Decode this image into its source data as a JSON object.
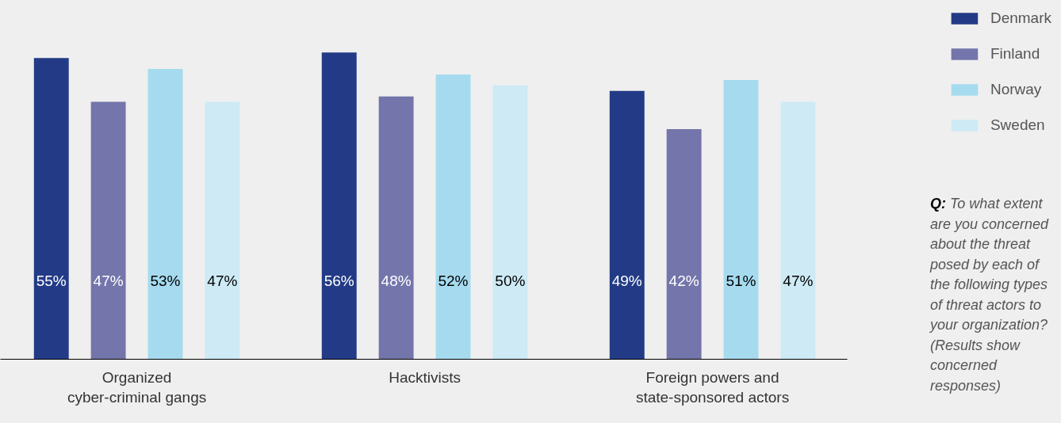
{
  "chart_data": {
    "type": "bar",
    "categories": [
      "Organized cyber-criminal gangs",
      "Hacktivists",
      "Foreign powers and state-sponsored actors"
    ],
    "series": [
      {
        "name": "Denmark",
        "color": "#233b86",
        "values": [
          55,
          56,
          49
        ],
        "value_labels": [
          "55%",
          "56%",
          "49%"
        ]
      },
      {
        "name": "Finland",
        "color": "#7375ab",
        "values": [
          47,
          48,
          42
        ],
        "value_labels": [
          "47%",
          "48%",
          "42%"
        ]
      },
      {
        "name": "Norway",
        "color": "#a6dbef",
        "values": [
          53,
          52,
          51
        ],
        "value_labels": [
          "53%",
          "52%",
          "51%"
        ]
      },
      {
        "name": "Sweden",
        "color": "#cdeaf5",
        "values": [
          47,
          50,
          47
        ],
        "value_labels": [
          "47%",
          "50%",
          "47%"
        ]
      }
    ],
    "legend": "top right",
    "grid": false,
    "annotations": [
      "Q:",
      "To what extent are you concerned about the threat posed by each of the following types of threat actors to your organization? (Results show concerned responses)"
    ]
  }
}
